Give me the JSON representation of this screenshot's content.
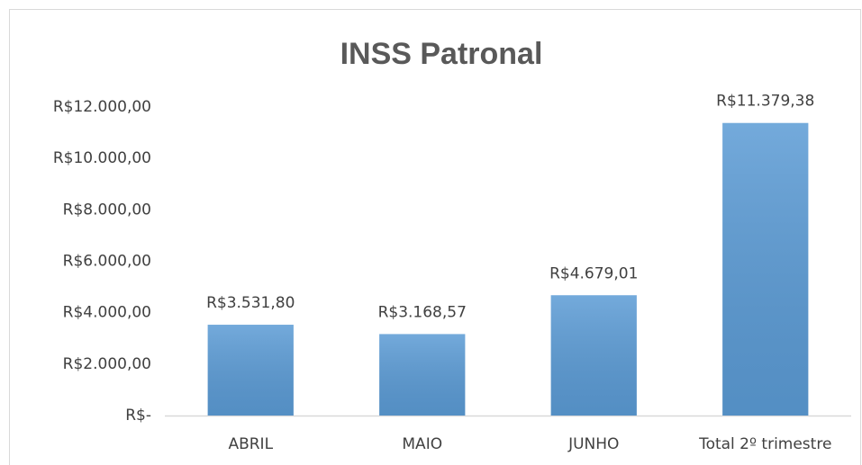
{
  "chart_data": {
    "type": "bar",
    "title": "INSS Patronal",
    "categories": [
      "ABRIL",
      "MAIO",
      "JUNHO",
      "Total 2º trimestre"
    ],
    "values": [
      3531.8,
      3168.57,
      4679.01,
      11379.38
    ],
    "value_labels": [
      "R$3.531,80",
      "R$3.168,57",
      "R$4.679,01",
      "R$11.379,38"
    ],
    "color": "#5b9bd5",
    "ylim": [
      0,
      12000
    ],
    "yticks": [
      {
        "value": 0,
        "label": "R$-"
      },
      {
        "value": 2000,
        "label": "R$2.000,00"
      },
      {
        "value": 4000,
        "label": "R$4.000,00"
      },
      {
        "value": 6000,
        "label": "R$6.000,00"
      },
      {
        "value": 8000,
        "label": "R$8.000,00"
      },
      {
        "value": 10000,
        "label": "R$10.000,00"
      },
      {
        "value": 12000,
        "label": "R$12.000,00"
      }
    ],
    "grid": false
  }
}
